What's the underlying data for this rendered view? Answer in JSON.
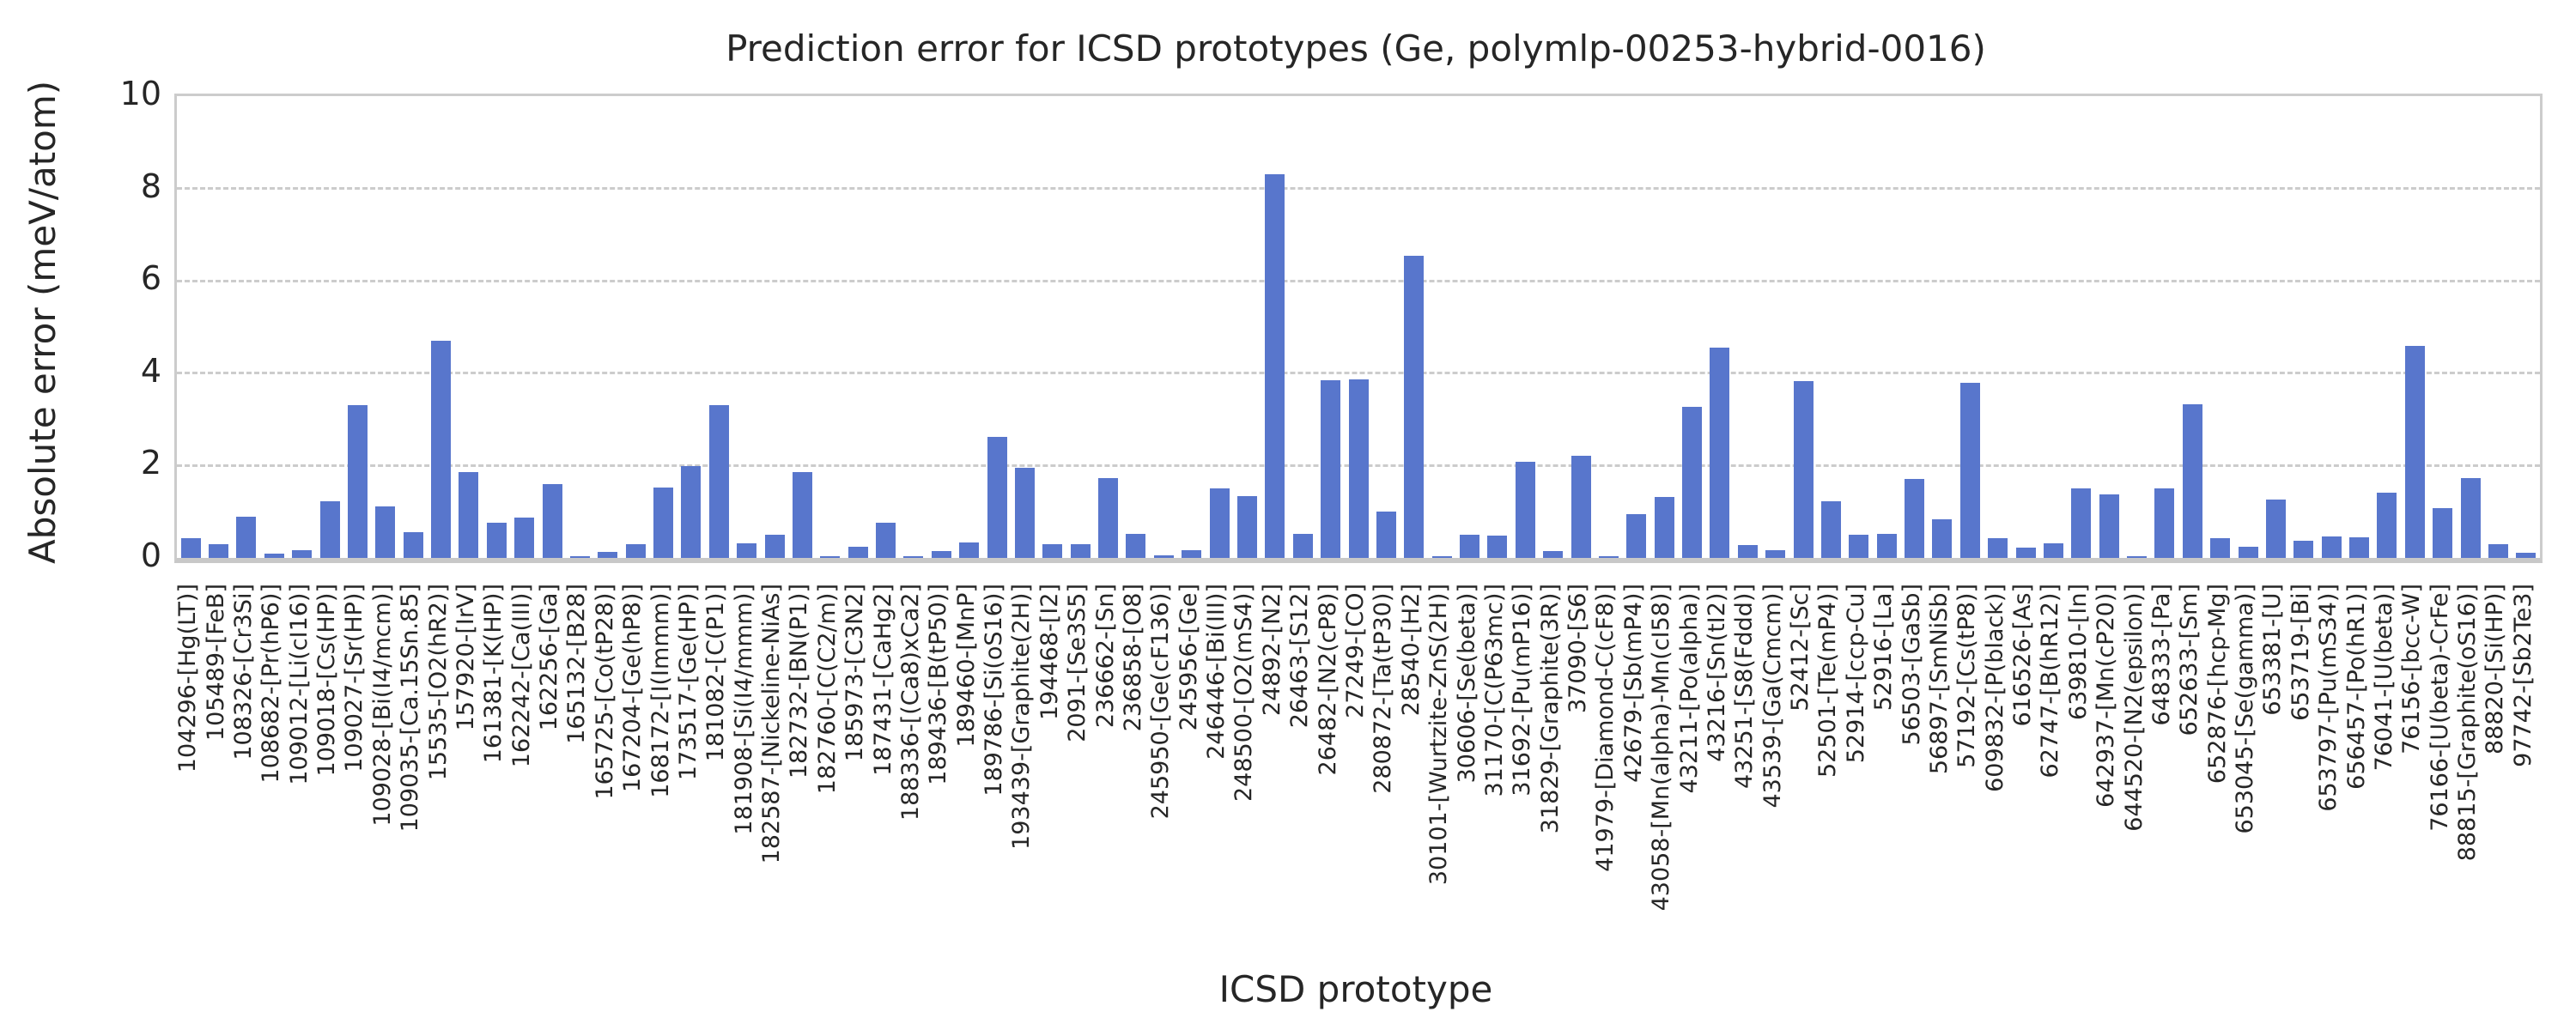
{
  "chart_data": {
    "type": "bar",
    "title": "Prediction error for ICSD prototypes (Ge, polymlp-00253-hybrid-0016)",
    "xlabel": "ICSD prototype",
    "ylabel": "Absolute error (meV/atom)",
    "ylim": [
      0,
      10
    ],
    "yticks": [
      0,
      2,
      4,
      6,
      8,
      10
    ],
    "grid": "horizontal-dashed",
    "legend": "none",
    "bar_color": "#5876CC",
    "grid_color": "#cccccc",
    "text_color": "#262626",
    "categories": [
      "104296-[Hg(LT)]",
      "105489-[FeB]",
      "108326-[Cr3Si]",
      "108682-[Pr(hP6)]",
      "109012-[Li(cI16)]",
      "109018-[Cs(HP)]",
      "109027-[Sr(HP)]",
      "109028-[Bi(I4/mcm)]",
      "109035-[Ca.15Sn.85]",
      "15535-[O2(hR2)]",
      "157920-[IrV]",
      "161381-[K(HP)]",
      "162242-[Ca(III)]",
      "162256-[Ga]",
      "165132-[B28]",
      "165725-[Co(tP28)]",
      "167204-[Ge(hP8)]",
      "168172-[I(Immm)]",
      "173517-[Ge(HP)]",
      "181082-[C(P1)]",
      "181908-[Si(I4/mmm)]",
      "182587-[Nickeline-NiAs]",
      "182732-[BN(P1)]",
      "182760-[C(C2/m)]",
      "185973-[C3N2]",
      "187431-[CaHg2]",
      "188336-[(Ca8)xCa2]",
      "189436-[B(tP50)]",
      "189460-[MnP]",
      "189786-[Si(oS16)]",
      "193439-[Graphite(2H)]",
      "194468-[I2]",
      "2091-[Se3S5]",
      "236662-[Sn]",
      "236858-[O8]",
      "245950-[Ge(cF136)]",
      "245956-[Ge]",
      "246446-[Bi(III)]",
      "248500-[O2(mS4)]",
      "24892-[N2]",
      "26463-[S12]",
      "26482-[N2(cP8)]",
      "27249-[CO]",
      "280872-[Ta(tP30)]",
      "28540-[H2]",
      "30101-[Wurtzite-ZnS(2H)]",
      "30606-[Se(beta)]",
      "31170-[C(P63mc)]",
      "31692-[Pu(mP16)]",
      "31829-[Graphite(3R)]",
      "37090-[S6]",
      "41979-[Diamond-C(cF8)]",
      "42679-[Sb(mP4)]",
      "43058-[Mn(alpha)-Mn(cI58)]",
      "43211-[Po(alpha)]",
      "43216-[Sn(tI2)]",
      "43251-[S8(Fddd)]",
      "43539-[Ga(Cmcm)]",
      "52412-[Sc]",
      "52501-[Te(mP4)]",
      "52914-[ccp-Cu]",
      "52916-[La]",
      "56503-[GaSb]",
      "56897-[SmNiSb]",
      "57192-[Cs(tP8)]",
      "609832-[P(black)]",
      "616526-[As]",
      "62747-[B(hR12)]",
      "639810-[In]",
      "642937-[Mn(cP20)]",
      "644520-[N2(epsilon)]",
      "648333-[Pa]",
      "652633-[Sm]",
      "652876-[hcp-Mg]",
      "653045-[Se(gamma)]",
      "653381-[U]",
      "653719-[Bi]",
      "653797-[Pu(mS34)]",
      "656457-[Po(hR1)]",
      "76041-[U(beta)]",
      "76156-[bcc-W]",
      "76166-[U(beta)-CrFe]",
      "88815-[Graphite(oS16)]",
      "88820-[Si(HP)]",
      "97742-[Sb2Te3]"
    ],
    "values": [
      0.42,
      0.29,
      0.9,
      0.1,
      0.17,
      1.23,
      3.3,
      1.11,
      0.55,
      4.7,
      1.86,
      0.77,
      0.87,
      1.59,
      0.03,
      0.13,
      0.3,
      1.52,
      1.98,
      3.3,
      0.31,
      0.5,
      1.85,
      0.03,
      0.25,
      0.77,
      0.03,
      0.14,
      0.33,
      2.62,
      1.96,
      0.29,
      0.29,
      1.72,
      0.53,
      0.05,
      0.17,
      1.51,
      1.33,
      8.3,
      0.53,
      3.84,
      3.87,
      1.01,
      6.55,
      0.04,
      0.51,
      0.48,
      2.09,
      0.15,
      2.22,
      0.03,
      0.95,
      1.32,
      3.27,
      4.55,
      0.28,
      0.17,
      3.83,
      1.23,
      0.51,
      0.53,
      1.71,
      0.83,
      3.8,
      0.42,
      0.23,
      0.31,
      1.5,
      1.38,
      0.03,
      1.5,
      3.33,
      0.43,
      0.24,
      1.26,
      0.38,
      0.46,
      0.45,
      1.41,
      4.6,
      1.08,
      1.72,
      0.29,
      0.12
    ]
  }
}
